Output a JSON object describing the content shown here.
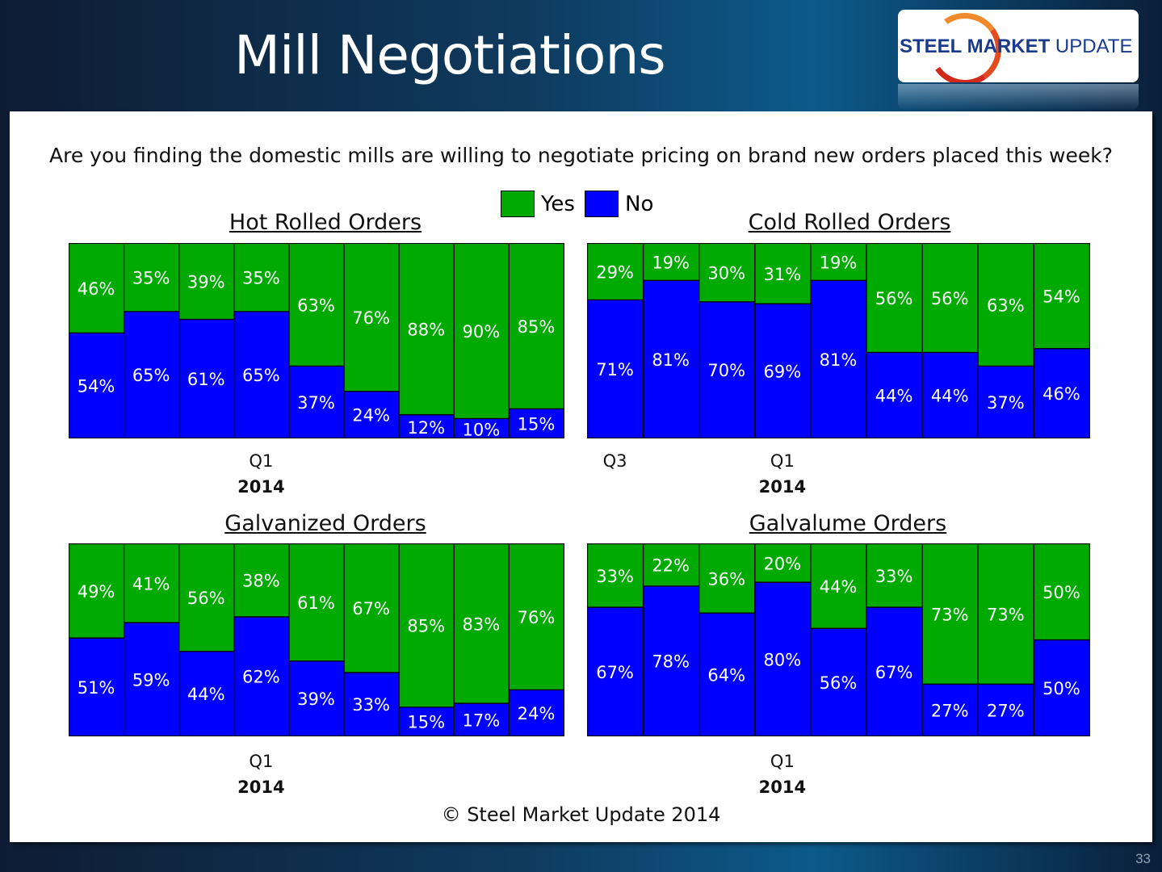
{
  "header": {
    "title": "Mill Negotiations",
    "logo_text_bold": "STEEL MARKET",
    "logo_text_light": "UPDATE"
  },
  "question": "Are you finding the domestic mills are willing to negotiate pricing on brand new orders placed this week?",
  "legend": [
    {
      "label": "Yes",
      "color": "#00aa00"
    },
    {
      "label": "No",
      "color": "#0000ff"
    }
  ],
  "footer": {
    "copyright": "© Steel Market Update 2014",
    "page_number": "33"
  },
  "chart_data": [
    {
      "type": "bar",
      "stacked": true,
      "title": "Hot Rolled Orders",
      "categories": [
        "",
        "",
        "",
        "Q1",
        "",
        "",
        "",
        "",
        ""
      ],
      "year_label": "2014",
      "year_index": 3,
      "series": [
        {
          "name": "No",
          "values": [
            54,
            65,
            61,
            65,
            37,
            24,
            12,
            10,
            15
          ]
        },
        {
          "name": "Yes",
          "values": [
            46,
            35,
            39,
            35,
            63,
            76,
            88,
            90,
            85
          ]
        }
      ],
      "ylim": [
        0,
        100
      ]
    },
    {
      "type": "bar",
      "stacked": true,
      "title": "Cold Rolled Orders",
      "categories": [
        "Q3",
        "",
        "",
        "Q1",
        "",
        "",
        "",
        "",
        ""
      ],
      "year_label": "2014",
      "year_index": 3,
      "series": [
        {
          "name": "No",
          "values": [
            71,
            81,
            70,
            69,
            81,
            44,
            44,
            37,
            46
          ]
        },
        {
          "name": "Yes",
          "values": [
            29,
            19,
            30,
            31,
            19,
            56,
            56,
            63,
            54
          ]
        }
      ],
      "ylim": [
        0,
        100
      ]
    },
    {
      "type": "bar",
      "stacked": true,
      "title": "Galvanized Orders",
      "categories": [
        "",
        "",
        "",
        "Q1",
        "",
        "",
        "",
        "",
        ""
      ],
      "year_label": "2014",
      "year_index": 3,
      "series": [
        {
          "name": "No",
          "values": [
            51,
            59,
            44,
            62,
            39,
            33,
            15,
            17,
            24
          ]
        },
        {
          "name": "Yes",
          "values": [
            49,
            41,
            56,
            38,
            61,
            67,
            85,
            83,
            76
          ]
        }
      ],
      "ylim": [
        0,
        100
      ]
    },
    {
      "type": "bar",
      "stacked": true,
      "title": "Galvalume Orders",
      "categories": [
        "",
        "",
        "",
        "Q1",
        "",
        "",
        "",
        "",
        ""
      ],
      "year_label": "2014",
      "year_index": 3,
      "series": [
        {
          "name": "No",
          "values": [
            67,
            78,
            64,
            80,
            56,
            67,
            27,
            27,
            50
          ]
        },
        {
          "name": "Yes",
          "values": [
            33,
            22,
            36,
            20,
            44,
            33,
            73,
            73,
            50
          ]
        }
      ],
      "ylim": [
        0,
        100
      ]
    }
  ]
}
